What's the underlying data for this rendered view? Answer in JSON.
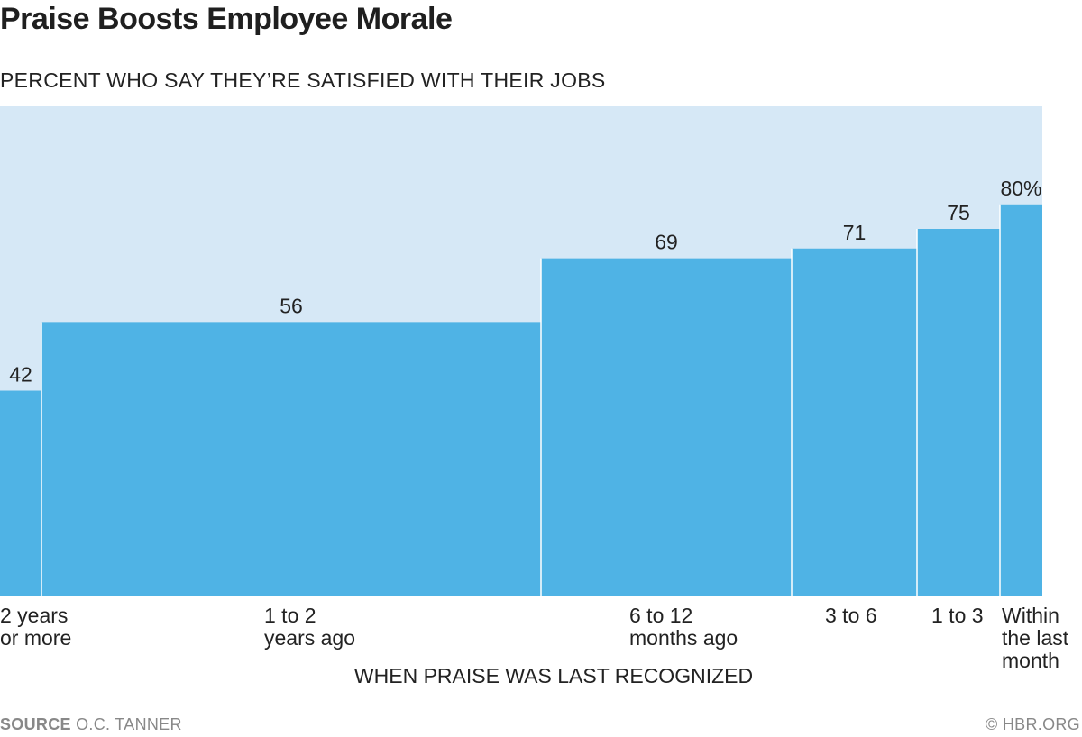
{
  "title": "Praise Boosts Employee Morale",
  "subtitle": "PERCENT WHO SAY THEY’RE SATISFIED WITH THEIR JOBS",
  "source_label": "SOURCE",
  "source_text": "O.C. TANNER",
  "credit": "© HBR.ORG",
  "colors": {
    "bar": "#4fb3e5",
    "background": "#d6e8f6",
    "divider": "#ffffff",
    "text": "#222222",
    "footer": "#888888"
  },
  "chart_data": {
    "type": "bar",
    "variant": "variable-width (marimekko-style) bars",
    "title": "Praise Boosts Employee Morale",
    "subtitle": "PERCENT WHO SAY THEY’RE SATISFIED WITH THEIR JOBS",
    "xlabel": "WHEN PRAISE WAS LAST RECOGNIZED",
    "ylabel": "",
    "ylim": [
      0,
      100
    ],
    "grid": false,
    "legend": "none",
    "categories": [
      [
        "2 years",
        "or more"
      ],
      [
        "1 to 2",
        "years ago"
      ],
      [
        "6 to 12",
        "months ago"
      ],
      [
        "3 to 6"
      ],
      [
        "1 to 3"
      ],
      [
        "Within",
        "the last",
        "month"
      ]
    ],
    "values": [
      42,
      56,
      69,
      71,
      75,
      80
    ],
    "value_labels": [
      "42",
      "56",
      "69",
      "71",
      "75",
      "80%"
    ]
  }
}
